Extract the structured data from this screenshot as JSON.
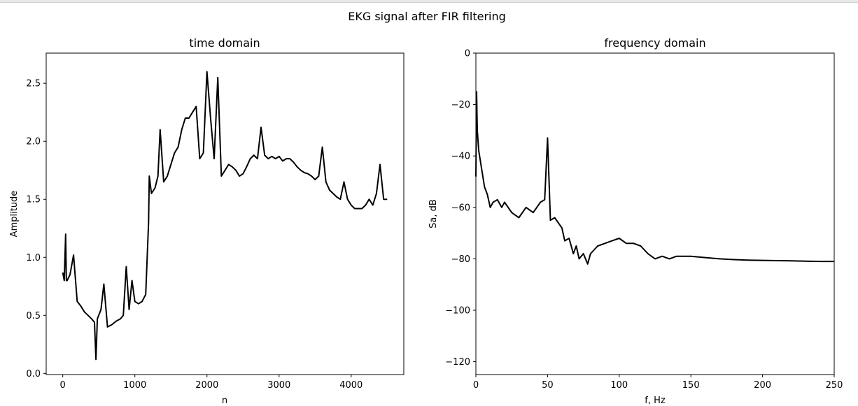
{
  "figure": {
    "suptitle": "EKG signal after FIR filtering"
  },
  "chart_data": [
    {
      "type": "line",
      "title": "time domain",
      "xlabel": "n",
      "ylabel": "Amplitude",
      "xlim": [
        -230,
        4730
      ],
      "ylim": [
        -0.01,
        2.76
      ],
      "xticks": [
        0,
        1000,
        2000,
        3000,
        4000
      ],
      "xtick_labels": [
        "0",
        "1000",
        "2000",
        "3000",
        "4000"
      ],
      "yticks": [
        0.0,
        0.5,
        1.0,
        1.5,
        2.0,
        2.5
      ],
      "ytick_labels": [
        "0.0",
        "0.5",
        "1.0",
        "1.5",
        "2.0",
        "2.5"
      ],
      "grid": false,
      "color": "#000000",
      "series": [
        {
          "x": [
            0,
            20,
            40,
            50,
            60,
            100,
            150,
            200,
            250,
            300,
            350,
            400,
            440,
            460,
            480,
            530,
            570,
            620,
            680,
            740,
            800,
            840,
            880,
            920,
            960,
            1000,
            1050,
            1100,
            1150,
            1190,
            1200,
            1230,
            1280,
            1320,
            1350,
            1400,
            1450,
            1500,
            1550,
            1600,
            1650,
            1700,
            1750,
            1800,
            1850,
            1900,
            1950,
            2000,
            2050,
            2100,
            2150,
            2200,
            2250,
            2300,
            2350,
            2400,
            2450,
            2500,
            2550,
            2600,
            2650,
            2700,
            2750,
            2800,
            2850,
            2900,
            2950,
            3000,
            3050,
            3100,
            3150,
            3200,
            3250,
            3300,
            3350,
            3400,
            3450,
            3500,
            3550,
            3600,
            3650,
            3700,
            3750,
            3800,
            3850,
            3900,
            3950,
            4000,
            4050,
            4100,
            4150,
            4200,
            4250,
            4300,
            4350,
            4400,
            4450,
            4500
          ],
          "y": [
            0.87,
            0.8,
            1.2,
            0.8,
            0.8,
            0.85,
            1.02,
            0.62,
            0.58,
            0.53,
            0.5,
            0.47,
            0.44,
            0.12,
            0.47,
            0.55,
            0.77,
            0.4,
            0.42,
            0.45,
            0.47,
            0.5,
            0.92,
            0.55,
            0.8,
            0.62,
            0.6,
            0.62,
            0.68,
            1.3,
            1.7,
            1.55,
            1.6,
            1.7,
            2.1,
            1.65,
            1.7,
            1.8,
            1.9,
            1.95,
            2.1,
            2.2,
            2.2,
            2.25,
            2.3,
            1.85,
            1.9,
            2.6,
            2.2,
            1.85,
            2.55,
            1.7,
            1.75,
            1.8,
            1.78,
            1.75,
            1.7,
            1.72,
            1.78,
            1.85,
            1.88,
            1.85,
            2.12,
            1.88,
            1.85,
            1.87,
            1.85,
            1.87,
            1.83,
            1.85,
            1.85,
            1.82,
            1.78,
            1.75,
            1.73,
            1.72,
            1.7,
            1.67,
            1.7,
            1.95,
            1.65,
            1.58,
            1.55,
            1.52,
            1.5,
            1.65,
            1.5,
            1.45,
            1.42,
            1.42,
            1.42,
            1.45,
            1.5,
            1.45,
            1.55,
            1.8,
            1.5,
            1.5
          ]
        }
      ]
    },
    {
      "type": "line",
      "title": "frequency domain",
      "xlabel": "f, Hz",
      "ylabel": "Sa, dB",
      "xlim": [
        0,
        250
      ],
      "ylim": [
        -125,
        0
      ],
      "xticks": [
        0,
        50,
        100,
        150,
        200,
        250
      ],
      "xtick_labels": [
        "0",
        "50",
        "100",
        "150",
        "200",
        "250"
      ],
      "yticks": [
        0,
        -20,
        -40,
        -60,
        -80,
        -100,
        -120
      ],
      "ytick_labels": [
        "0",
        "−20",
        "−40",
        "−60",
        "−80",
        "−100",
        "−120"
      ],
      "grid": false,
      "color": "#000000",
      "series": [
        {
          "x": [
            0,
            0.5,
            1,
            2,
            4,
            6,
            8,
            10,
            12,
            15,
            18,
            20,
            25,
            30,
            35,
            40,
            45,
            48,
            50,
            52,
            55,
            60,
            62,
            65,
            68,
            70,
            72,
            75,
            78,
            80,
            85,
            90,
            95,
            100,
            105,
            110,
            115,
            120,
            125,
            130,
            135,
            140,
            150,
            160,
            170,
            180,
            190,
            200,
            210,
            220,
            230,
            240,
            250
          ],
          "y": [
            -48,
            -15,
            -30,
            -38,
            -45,
            -52,
            -55,
            -60,
            -58,
            -57,
            -60,
            -58,
            -62,
            -64,
            -60,
            -62,
            -58,
            -57,
            -33,
            -65,
            -64,
            -68,
            -73,
            -72,
            -78,
            -75,
            -80,
            -78,
            -82,
            -78,
            -75,
            -74,
            -73,
            -72,
            -74,
            -74,
            -75,
            -78,
            -80,
            -79,
            -80,
            -79,
            -79,
            -79.5,
            -80,
            -80.3,
            -80.5,
            -80.6,
            -80.7,
            -80.8,
            -80.9,
            -81,
            -81
          ]
        }
      ]
    }
  ]
}
